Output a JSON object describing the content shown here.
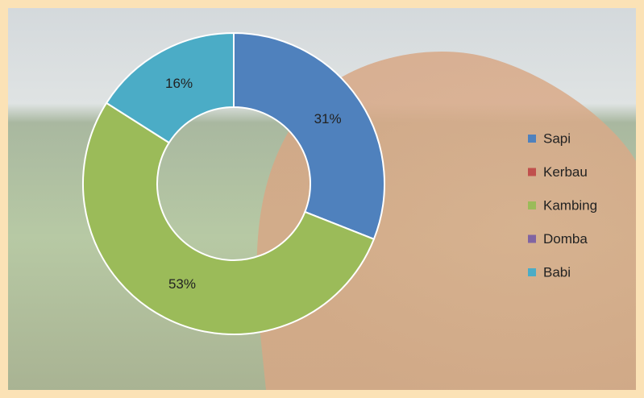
{
  "chart_data": {
    "type": "donut",
    "categories": [
      "Sapi",
      "Kerbau",
      "Kambing",
      "Domba",
      "Babi"
    ],
    "values": [
      31,
      0,
      53,
      0,
      16
    ],
    "value_labels": [
      "31%",
      null,
      "53%",
      null,
      "16%"
    ],
    "colors": [
      "#4f81bd",
      "#c0504d",
      "#9bbb59",
      "#8064a2",
      "#4bacc6"
    ],
    "legend": "right"
  }
}
